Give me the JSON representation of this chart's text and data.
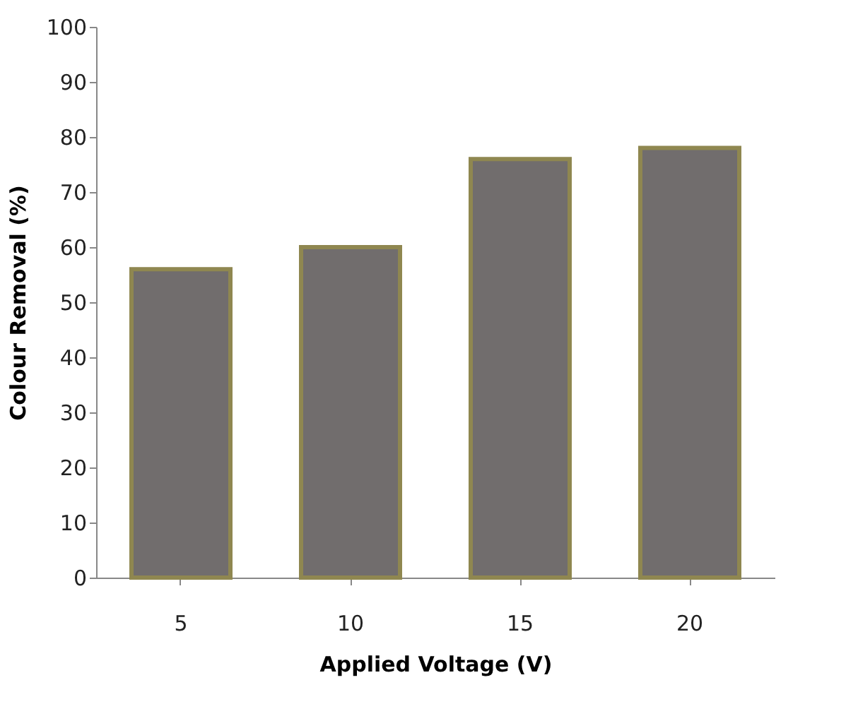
{
  "chart_data": {
    "type": "bar",
    "xlabel": "Applied Voltage (V)",
    "ylabel": "Colour Removal (%)",
    "categories": [
      "5",
      "10",
      "15",
      "20"
    ],
    "values": [
      56,
      60,
      76,
      78
    ],
    "color": "#716d6d",
    "ylim": [
      0,
      100
    ],
    "yticks": [
      0,
      10,
      20,
      30,
      40,
      50,
      60,
      70,
      80,
      90,
      100
    ],
    "grid": false
  }
}
